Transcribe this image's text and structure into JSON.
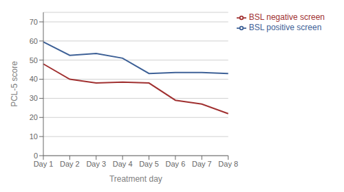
{
  "chart_data": {
    "type": "line",
    "categories": [
      "Day 1",
      "Day 2",
      "Day 3",
      "Day 4",
      "Day 5",
      "Day 6",
      "Day 7",
      "Day 8"
    ],
    "series": [
      {
        "name": "BSL positive screen",
        "color": "#3d6096",
        "values": [
          59.5,
          52.5,
          53.5,
          51,
          43,
          43.5,
          43.5,
          43
        ]
      },
      {
        "name": "BSL negative screen",
        "color": "#a03030",
        "values": [
          48,
          40,
          38,
          38.5,
          38,
          29,
          27,
          22
        ]
      }
    ],
    "xlabel": "Treatment day",
    "ylabel": "PCL-5 score",
    "ylim": [
      0,
      75
    ],
    "yticks": [
      0,
      10,
      20,
      30,
      40,
      50,
      60,
      70
    ],
    "grid": true,
    "legend": "right"
  }
}
